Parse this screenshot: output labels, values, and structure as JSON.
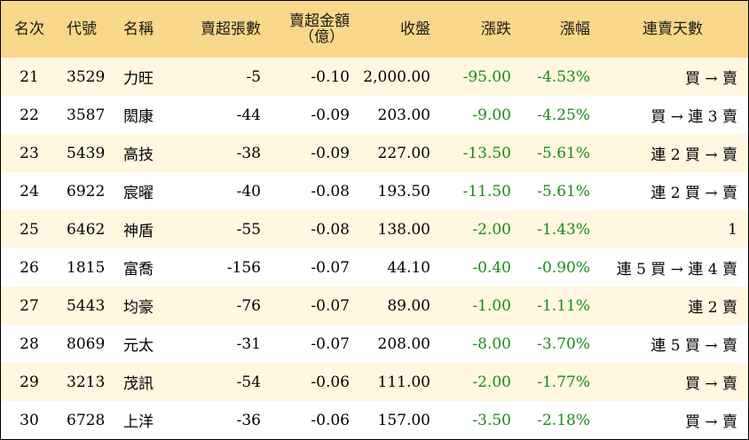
{
  "table": {
    "headers": {
      "rank": "名次",
      "code": "代號",
      "name": "名稱",
      "net_sell_lots": "賣超張數",
      "net_sell_amount_line1": "賣超金額",
      "net_sell_amount_line2": "（億）",
      "close": "收盤",
      "change": "漲跌",
      "change_pct": "漲幅",
      "streak": "連賣天數"
    },
    "rows": [
      {
        "rank": "21",
        "code": "3529",
        "name": "力旺",
        "net_sell_lots": "-5",
        "net_sell_amount": "-0.10",
        "close": "2,000.00",
        "change": "-95.00",
        "change_pct": "-4.53%",
        "streak": "買 → 賣"
      },
      {
        "rank": "22",
        "code": "3587",
        "name": "閎康",
        "net_sell_lots": "-44",
        "net_sell_amount": "-0.09",
        "close": "203.00",
        "change": "-9.00",
        "change_pct": "-4.25%",
        "streak": "買 → 連 3 賣"
      },
      {
        "rank": "23",
        "code": "5439",
        "name": "高技",
        "net_sell_lots": "-38",
        "net_sell_amount": "-0.09",
        "close": "227.00",
        "change": "-13.50",
        "change_pct": "-5.61%",
        "streak": "連 2 買 → 賣"
      },
      {
        "rank": "24",
        "code": "6922",
        "name": "宸曜",
        "net_sell_lots": "-40",
        "net_sell_amount": "-0.08",
        "close": "193.50",
        "change": "-11.50",
        "change_pct": "-5.61%",
        "streak": "連 2 買 → 賣"
      },
      {
        "rank": "25",
        "code": "6462",
        "name": "神盾",
        "net_sell_lots": "-55",
        "net_sell_amount": "-0.08",
        "close": "138.00",
        "change": "-2.00",
        "change_pct": "-1.43%",
        "streak": "1"
      },
      {
        "rank": "26",
        "code": "1815",
        "name": "富喬",
        "net_sell_lots": "-156",
        "net_sell_amount": "-0.07",
        "close": "44.10",
        "change": "-0.40",
        "change_pct": "-0.90%",
        "streak": "連 5 買 → 連 4 賣"
      },
      {
        "rank": "27",
        "code": "5443",
        "name": "均豪",
        "net_sell_lots": "-76",
        "net_sell_amount": "-0.07",
        "close": "89.00",
        "change": "-1.00",
        "change_pct": "-1.11%",
        "streak": "連 2 賣"
      },
      {
        "rank": "28",
        "code": "8069",
        "name": "元太",
        "net_sell_lots": "-31",
        "net_sell_amount": "-0.07",
        "close": "208.00",
        "change": "-8.00",
        "change_pct": "-3.70%",
        "streak": "連 5 買 → 賣"
      },
      {
        "rank": "29",
        "code": "3213",
        "name": "茂訊",
        "net_sell_lots": "-54",
        "net_sell_amount": "-0.06",
        "close": "111.00",
        "change": "-2.00",
        "change_pct": "-1.77%",
        "streak": "買 → 賣"
      },
      {
        "rank": "30",
        "code": "6728",
        "name": "上洋",
        "net_sell_lots": "-36",
        "net_sell_amount": "-0.06",
        "close": "157.00",
        "change": "-3.50",
        "change_pct": "-2.18%",
        "streak": "買 → 賣"
      }
    ]
  },
  "colors": {
    "header_bg": "#f9d78b",
    "odd_row_bg": "#fff7e0",
    "even_row_bg": "#ffffff",
    "negative_change": "#1b8a1b"
  }
}
